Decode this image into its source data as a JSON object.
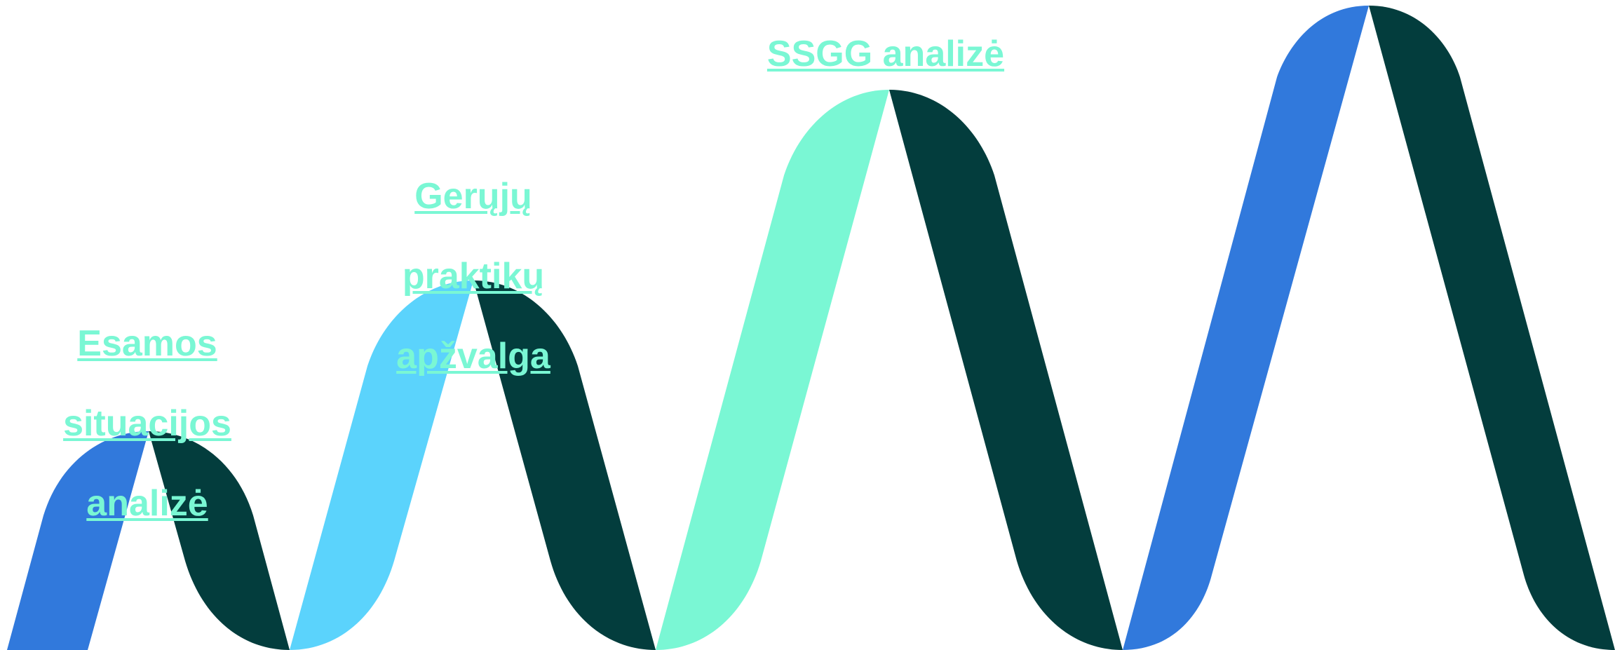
{
  "colors": {
    "dark_teal": "#033d3d",
    "blue": "#3179dc",
    "sky": "#5bd3fc",
    "mint": "#7af7d4",
    "label": "#7af7d4"
  },
  "steps": [
    {
      "label_lines": [
        "Esamos",
        "situacijos",
        "analizė"
      ],
      "up_color": "#3179dc",
      "down_color": "#033d3d"
    },
    {
      "label_lines": [
        "Gerųjų",
        "praktikų",
        "apžvalga"
      ],
      "up_color": "#5bd3fc",
      "down_color": "#033d3d"
    },
    {
      "label_lines": [
        "SSGG analizė"
      ],
      "up_color": "#7af7d4",
      "down_color": "#033d3d"
    },
    {
      "label_lines": [],
      "up_color": "#3179dc",
      "down_color": "#033d3d"
    }
  ]
}
